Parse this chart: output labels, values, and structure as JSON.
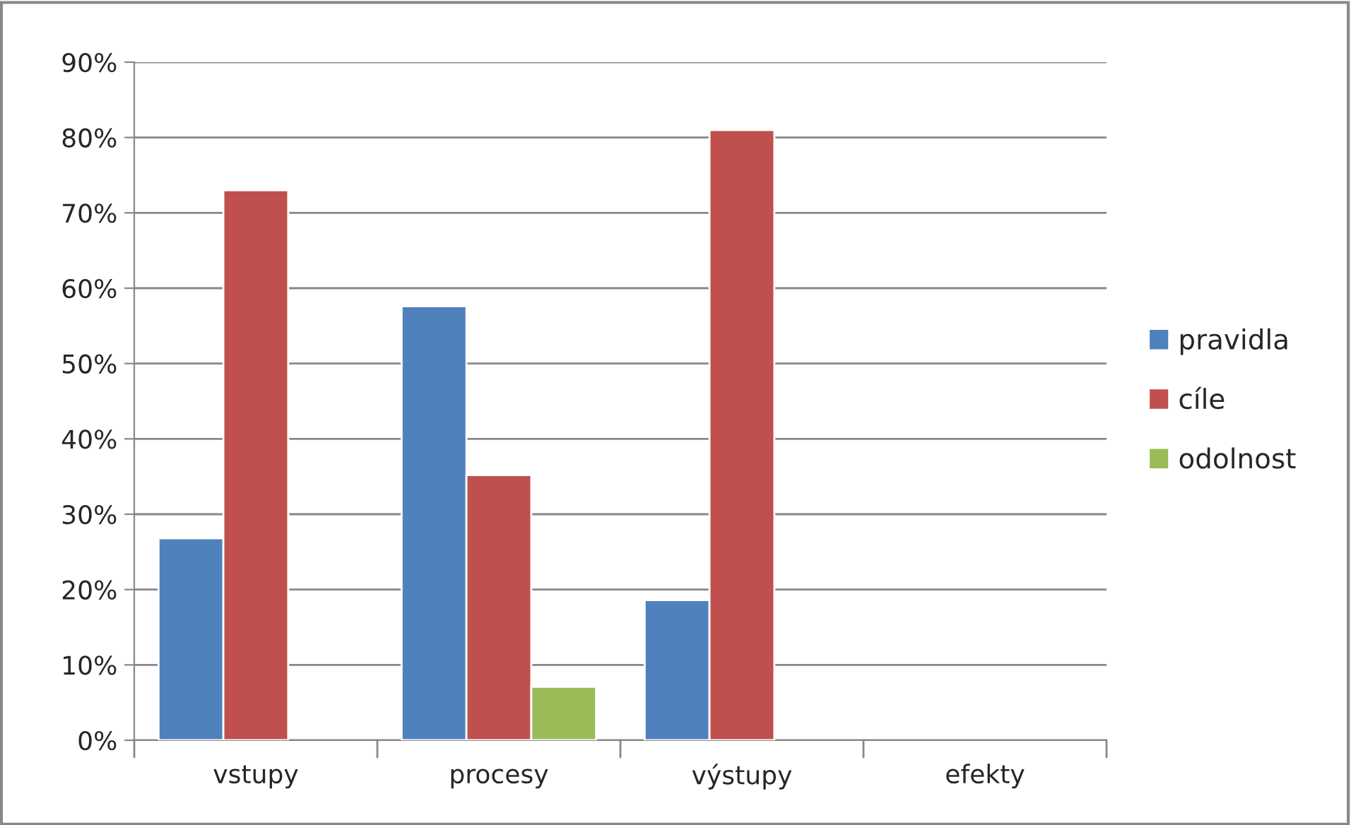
{
  "chart_data": {
    "type": "bar",
    "categories": [
      "vstupy",
      "procesy",
      "výstupy",
      "efekty"
    ],
    "series": [
      {
        "name": "pravidla",
        "color": "#4f81bd",
        "values": [
          26.8,
          57.6,
          18.6,
          null
        ]
      },
      {
        "name": "cíle",
        "color": "#c0504d",
        "values": [
          73,
          35.2,
          81,
          null
        ]
      },
      {
        "name": "odolnost",
        "color": "#9bbb59",
        "values": [
          null,
          7.1,
          null,
          null
        ]
      }
    ],
    "ylim": [
      0,
      90
    ],
    "yticks": [
      {
        "value": 0,
        "label": "0%"
      },
      {
        "value": 10,
        "label": "10%"
      },
      {
        "value": 20,
        "label": "20%"
      },
      {
        "value": 30,
        "label": "30%"
      },
      {
        "value": 40,
        "label": "40%"
      },
      {
        "value": 50,
        "label": "50%"
      },
      {
        "value": 60,
        "label": "60%"
      },
      {
        "value": 70,
        "label": "70%"
      },
      {
        "value": 80,
        "label": "80%"
      },
      {
        "value": 90,
        "label": "90%"
      }
    ],
    "grid": "y",
    "legend": "right"
  }
}
